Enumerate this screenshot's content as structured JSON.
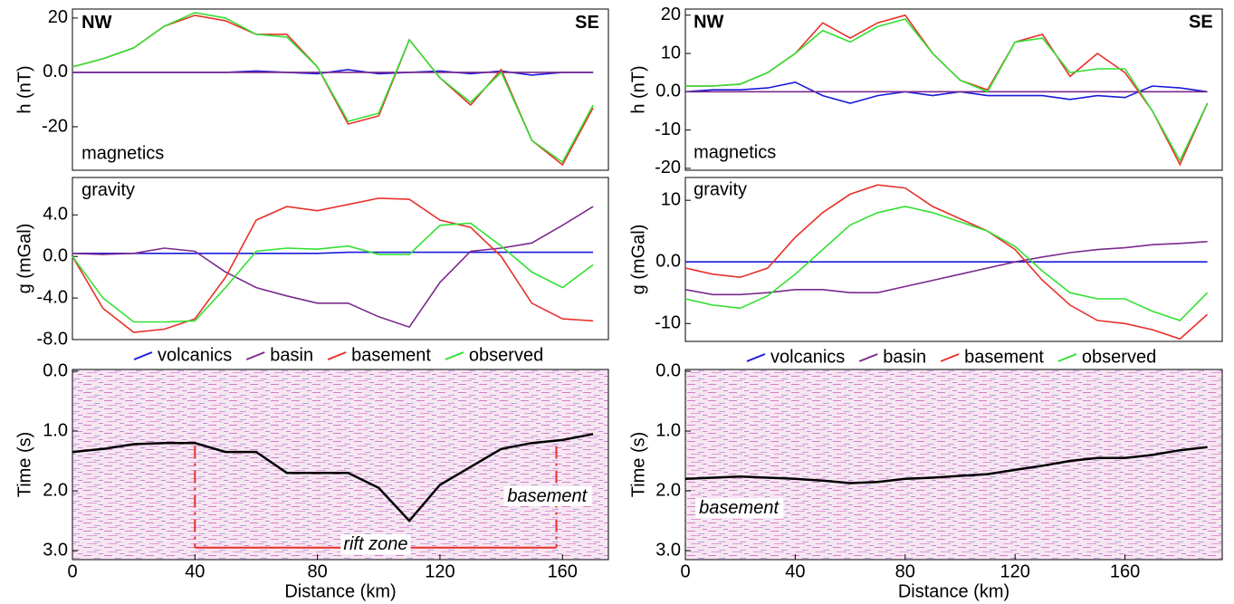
{
  "chart_data": [
    {
      "type": "line",
      "ylabel": "h (nT)",
      "x": [
        0,
        10,
        20,
        30,
        40,
        50,
        60,
        70,
        80,
        90,
        100,
        110,
        120,
        130,
        140,
        150,
        160,
        170
      ],
      "xlim": [
        0,
        175
      ],
      "ylim": [
        -36,
        23.3
      ],
      "yticks": [
        20,
        {
          "value": 0,
          "label": "0.0"
        },
        -20
      ],
      "series": [
        {
          "color": "#1a1adb",
          "values": [
            0,
            0,
            0,
            0,
            0,
            0,
            0.5,
            0,
            -0.5,
            1,
            -0.5,
            0,
            0.5,
            -0.5,
            0.5,
            -1,
            0,
            0
          ]
        },
        {
          "color": "#7b2a8c",
          "values": [
            0,
            0,
            0,
            0,
            0,
            0,
            0,
            0,
            0,
            0,
            0,
            0,
            0,
            0,
            0,
            0,
            0,
            0
          ]
        },
        {
          "color": "#e8302a",
          "values": [
            2,
            5,
            9,
            17,
            21,
            19,
            14,
            14,
            2,
            -19,
            -16,
            12,
            -2,
            -12,
            1,
            -25,
            -34,
            -13
          ]
        },
        {
          "color": "#33e033",
          "values": [
            2,
            5,
            9,
            17,
            22,
            20,
            14,
            13,
            2,
            -18,
            -15,
            12,
            -2,
            -11,
            0,
            -25,
            -33,
            -12
          ]
        }
      ],
      "annotations": [
        {
          "text": "NW",
          "x": 3,
          "y": 18,
          "style": "bold"
        },
        {
          "text": "SE",
          "x": 172,
          "y": 18,
          "style": "bold",
          "anchor": "end"
        },
        {
          "text": "magnetics",
          "x": 3,
          "y": -30
        }
      ]
    },
    {
      "type": "line",
      "ylabel": "g (mGal)",
      "x": [
        0,
        10,
        20,
        30,
        40,
        50,
        60,
        70,
        80,
        90,
        100,
        110,
        120,
        130,
        140,
        150,
        160,
        170
      ],
      "xlim": [
        0,
        175
      ],
      "ylim": [
        -8,
        7.6
      ],
      "yticks": [
        {
          "value": 4,
          "label": "4.0"
        },
        {
          "value": 0,
          "label": "0.0"
        },
        {
          "value": -4,
          "label": "-4.0"
        },
        {
          "value": -8,
          "label": "-8.0"
        }
      ],
      "series": [
        {
          "name": "volcanics",
          "color": "#1a1adb",
          "values": [
            0.3,
            0.3,
            0.3,
            0.3,
            0.3,
            0.3,
            0.3,
            0.3,
            0.3,
            0.4,
            0.4,
            0.4,
            0.4,
            0.4,
            0.4,
            0.4,
            0.4,
            0.4
          ]
        },
        {
          "name": "basin",
          "color": "#7b2a8c",
          "values": [
            0.3,
            0.2,
            0.3,
            0.8,
            0.5,
            -1.5,
            -3,
            -3.8,
            -4.5,
            -4.5,
            -5.8,
            -6.8,
            -2.5,
            0.5,
            0.8,
            1.3,
            3,
            4.8
          ]
        },
        {
          "name": "basement",
          "color": "#e8302a",
          "values": [
            0,
            -5,
            -7.3,
            -7,
            -6,
            -2,
            3.5,
            4.8,
            4.4,
            5,
            5.6,
            5.5,
            3.5,
            2.8,
            0,
            -4.5,
            -6,
            -6.2
          ]
        },
        {
          "name": "observed",
          "color": "#33e033",
          "values": [
            0,
            -4,
            -6.3,
            -6.3,
            -6.2,
            -3,
            0.5,
            0.8,
            0.7,
            1,
            0.2,
            0.2,
            3,
            3.2,
            1,
            -1.5,
            -3,
            -0.8
          ]
        }
      ],
      "legend": "bottom",
      "annotations": [
        {
          "text": "gravity",
          "x": 3,
          "y": 6.3
        }
      ]
    },
    {
      "type": "line",
      "ylabel": "Time (s)",
      "xlabel": "Distance (km)",
      "x": [
        0,
        10,
        20,
        30,
        40,
        50,
        60,
        70,
        80,
        90,
        100,
        110,
        120,
        130,
        140,
        150,
        160,
        170
      ],
      "xlim": [
        0,
        175
      ],
      "ylim": [
        3.15,
        -0.03
      ],
      "xticks": [
        0,
        40,
        80,
        120,
        160
      ],
      "yticks": [
        {
          "value": 0,
          "label": "0.0"
        },
        {
          "value": 1,
          "label": "1.0"
        },
        {
          "value": 2,
          "label": "2.0"
        },
        {
          "value": 3,
          "label": "3.0"
        }
      ],
      "series": [
        {
          "color": "#000000",
          "values": [
            1.35,
            1.3,
            1.22,
            1.2,
            1.2,
            1.35,
            1.35,
            1.7,
            1.7,
            1.7,
            1.95,
            2.5,
            1.9,
            1.6,
            1.3,
            1.2,
            1.15,
            1.05
          ]
        }
      ],
      "annotations": [
        {
          "text": "basement",
          "x": 142,
          "y": 2.1,
          "style": "italic"
        }
      ],
      "bracket": {
        "label": "rift zone",
        "x": [
          40,
          158
        ],
        "y": [
          1.25,
          2.95
        ]
      }
    },
    {
      "type": "line",
      "ylabel": "h (nT)",
      "x": [
        0,
        10,
        20,
        30,
        40,
        50,
        60,
        70,
        80,
        90,
        100,
        110,
        120,
        130,
        140,
        150,
        160,
        170,
        180,
        190
      ],
      "xlim": [
        0,
        195.4
      ],
      "ylim": [
        -20.5,
        21.6
      ],
      "yticks": [
        20,
        10,
        {
          "value": 0,
          "label": "0.0"
        },
        -10,
        -20
      ],
      "series": [
        {
          "color": "#1a1adb",
          "values": [
            0,
            0.5,
            0.5,
            1,
            2.5,
            -1,
            -3,
            -1,
            0,
            -1,
            0,
            -1,
            -1,
            -1,
            -2,
            -1,
            -1.5,
            1.5,
            1,
            0
          ]
        },
        {
          "color": "#7b2a8c",
          "values": [
            0,
            0,
            0,
            0,
            0,
            0,
            0,
            0,
            0,
            0,
            0,
            0,
            0,
            0,
            0,
            0,
            0,
            0,
            0,
            0
          ]
        },
        {
          "color": "#e8302a",
          "values": [
            1.5,
            1.5,
            2,
            5,
            10,
            18,
            14,
            18,
            20,
            10,
            3,
            0.5,
            13,
            15,
            4,
            10,
            5,
            -5,
            -19,
            -3
          ]
        },
        {
          "color": "#33e033",
          "values": [
            1.5,
            1.5,
            2,
            5,
            10,
            16,
            13,
            17,
            19,
            10,
            3,
            0,
            13,
            14,
            5,
            6,
            6,
            -5,
            -18,
            -3
          ]
        }
      ],
      "annotations": [
        {
          "text": "NW",
          "x": 3,
          "y": 18,
          "style": "bold"
        },
        {
          "text": "SE",
          "x": 192,
          "y": 18,
          "style": "bold",
          "anchor": "end"
        },
        {
          "text": "magnetics",
          "x": 3,
          "y": -16
        }
      ]
    },
    {
      "type": "line",
      "ylabel": "g (mGal)",
      "x": [
        0,
        10,
        20,
        30,
        40,
        50,
        60,
        70,
        80,
        90,
        100,
        110,
        120,
        130,
        140,
        150,
        160,
        170,
        180,
        190
      ],
      "xlim": [
        0,
        195.4
      ],
      "ylim": [
        -12.9,
        13.7
      ],
      "yticks": [
        10,
        {
          "value": 0,
          "label": "0.0"
        },
        -10
      ],
      "series": [
        {
          "name": "volcanics",
          "color": "#1a1adb",
          "values": [
            0,
            0,
            0,
            0,
            0,
            0,
            0,
            0,
            0,
            0,
            0,
            0,
            0,
            0,
            0,
            0,
            0,
            0,
            0,
            0
          ]
        },
        {
          "name": "basin",
          "color": "#7b2a8c",
          "values": [
            -4.5,
            -5.3,
            -5.3,
            -5,
            -4.5,
            -4.5,
            -5,
            -5,
            -4,
            -3,
            -2,
            -1,
            0,
            0.8,
            1.5,
            2,
            2.3,
            2.8,
            3,
            3.3
          ]
        },
        {
          "name": "basement",
          "color": "#e8302a",
          "values": [
            -1,
            -2,
            -2.5,
            -1,
            4,
            8,
            11,
            12.5,
            12,
            9,
            7,
            5,
            2,
            -3,
            -7,
            -9.5,
            -10,
            -11,
            -12.5,
            -8.5
          ]
        },
        {
          "name": "observed",
          "color": "#33e033",
          "values": [
            -6,
            -7,
            -7.5,
            -5.5,
            -2,
            2,
            6,
            8,
            9,
            8,
            6.5,
            5,
            2.5,
            -1.5,
            -5,
            -6,
            -6,
            -8,
            -9.5,
            -5
          ]
        }
      ],
      "legend": "bottom",
      "annotations": [
        {
          "text": "gravity",
          "x": 3,
          "y": 11.6
        }
      ]
    },
    {
      "type": "line",
      "ylabel": "Time (s)",
      "xlabel": "Distance (km)",
      "x": [
        0,
        10,
        20,
        30,
        40,
        50,
        60,
        70,
        80,
        90,
        100,
        110,
        120,
        130,
        140,
        150,
        160,
        170,
        180,
        190
      ],
      "xlim": [
        0,
        195.4
      ],
      "ylim": [
        3.15,
        -0.03
      ],
      "xticks": [
        0,
        40,
        80,
        120,
        160
      ],
      "yticks": [
        {
          "value": 0,
          "label": "0.0"
        },
        {
          "value": 1,
          "label": "1.0"
        },
        {
          "value": 2,
          "label": "2.0"
        },
        {
          "value": 3,
          "label": "3.0"
        }
      ],
      "series": [
        {
          "color": "#000000",
          "values": [
            1.8,
            1.78,
            1.76,
            1.78,
            1.8,
            1.83,
            1.87,
            1.85,
            1.8,
            1.78,
            1.75,
            1.72,
            1.65,
            1.58,
            1.5,
            1.45,
            1.45,
            1.4,
            1.32,
            1.27
          ]
        }
      ],
      "annotations": [
        {
          "text": "basement",
          "x": 5,
          "y": 2.3,
          "style": "italic"
        }
      ]
    }
  ]
}
